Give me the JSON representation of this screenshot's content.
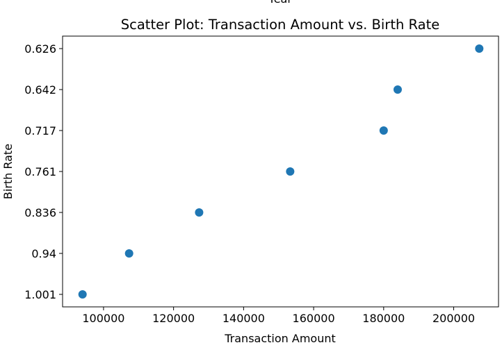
{
  "chart_data": {
    "type": "scatter",
    "title": "Scatter Plot: Transaction Amount vs. Birth Rate",
    "top_clipped_label": "Year",
    "xlabel": "Transaction Amount",
    "ylabel": "Birth Rate",
    "xlim": [
      88300,
      212800
    ],
    "x_ticks": [
      100000,
      120000,
      140000,
      160000,
      180000,
      200000
    ],
    "y_axis_kind": "categorical",
    "y_categories": [
      "1.001",
      "0.94",
      "0.836",
      "0.761",
      "0.717",
      "0.642",
      "0.626"
    ],
    "points": [
      {
        "x": 94000,
        "y": "1.001"
      },
      {
        "x": 107300,
        "y": "0.94"
      },
      {
        "x": 127300,
        "y": "0.836"
      },
      {
        "x": 153300,
        "y": "0.761"
      },
      {
        "x": 180000,
        "y": "0.717"
      },
      {
        "x": 184000,
        "y": "0.642"
      },
      {
        "x": 207300,
        "y": "0.626"
      }
    ],
    "marker_color": "#1f77b4",
    "grid": false,
    "legend": false
  }
}
